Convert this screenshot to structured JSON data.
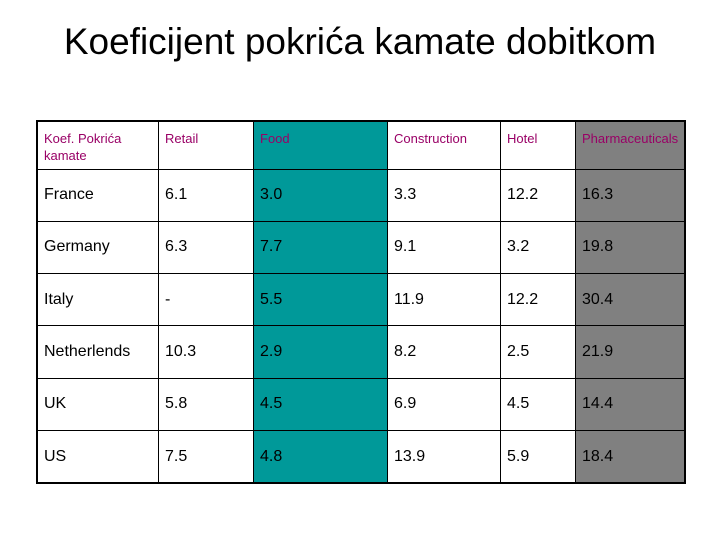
{
  "title": "Koeficijent pokrića kamate dobitkom",
  "colors": {
    "food_column": "#009999",
    "pharma_column": "#808080",
    "header_accent_text": "#990066"
  },
  "table": {
    "headers": [
      "Koef. Pokrića kamate",
      "Retail",
      "Food",
      "Construction",
      "Hotel",
      "Pharmaceuticals"
    ],
    "rows": [
      [
        "France",
        "6.1",
        "3.0",
        "3.3",
        "12.2",
        "16.3"
      ],
      [
        "Germany",
        "6.3",
        "7.7",
        "9.1",
        "3.2",
        "19.8"
      ],
      [
        "Italy",
        "-",
        "5.5",
        "11.9",
        "12.2",
        "30.4"
      ],
      [
        "Netherlends",
        "10.3",
        "2.9",
        "8.2",
        "2.5",
        "21.9"
      ],
      [
        "UK",
        "5.8",
        "4.5",
        "6.9",
        "4.5",
        "14.4"
      ],
      [
        "US",
        "7.5",
        "4.8",
        "13.9",
        "5.9",
        "18.4"
      ]
    ]
  }
}
